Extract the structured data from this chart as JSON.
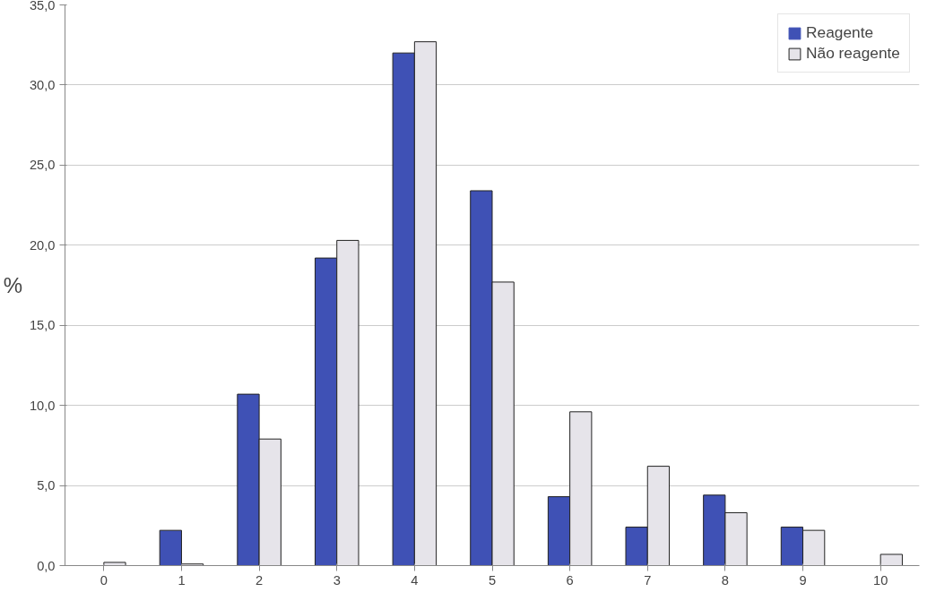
{
  "chart_data": {
    "type": "bar",
    "ylabel": "%",
    "categories": [
      "0",
      "1",
      "2",
      "3",
      "4",
      "5",
      "6",
      "7",
      "8",
      "9",
      "10"
    ],
    "series": [
      {
        "name": "Reagente",
        "color": "#3f51b5",
        "values": [
          0,
          2.2,
          10.7,
          19.2,
          32.0,
          23.4,
          4.3,
          2.4,
          4.4,
          2.4,
          0
        ]
      },
      {
        "name": "Não reagente",
        "color": "#e6e4ea",
        "values": [
          0.2,
          0.1,
          7.9,
          20.3,
          32.7,
          17.7,
          9.6,
          6.2,
          3.3,
          2.2,
          0.7
        ]
      }
    ],
    "ylim": [
      0,
      35
    ],
    "yticks": [
      {
        "value": 0,
        "label": "0,0"
      },
      {
        "value": 5,
        "label": "5,0"
      },
      {
        "value": 10,
        "label": "10,0"
      },
      {
        "value": 15,
        "label": "15,0"
      },
      {
        "value": 20,
        "label": "20,0"
      },
      {
        "value": 25,
        "label": "25,0"
      },
      {
        "value": 30,
        "label": "30,0"
      },
      {
        "value": 35,
        "label": "35,0"
      }
    ],
    "grid": "y",
    "legend": "top right"
  }
}
